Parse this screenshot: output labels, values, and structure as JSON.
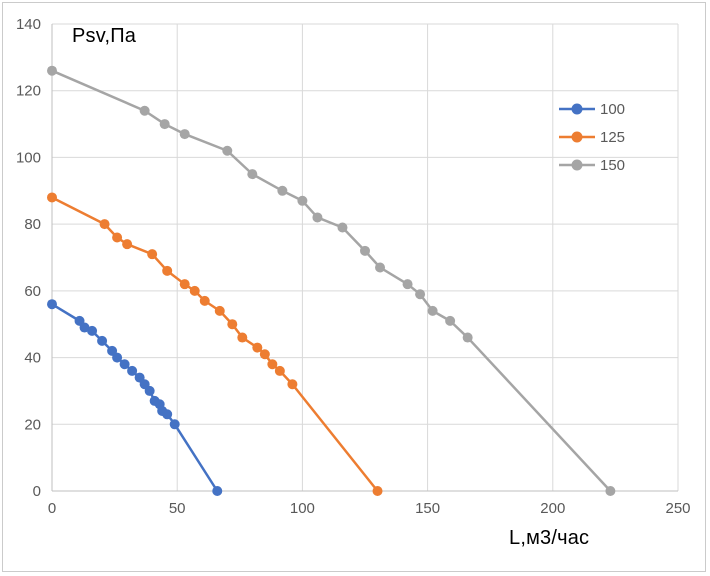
{
  "chart_data": {
    "type": "line",
    "title": "",
    "ylabel": "Psv,Па",
    "xlabel": "L,м3/час",
    "xlim": [
      0,
      250
    ],
    "ylim": [
      0,
      140
    ],
    "xticks": [
      0,
      50,
      100,
      150,
      200,
      250
    ],
    "yticks": [
      0,
      20,
      40,
      60,
      80,
      100,
      120,
      140
    ],
    "grid": true,
    "legend_position": "inside-top-right",
    "series": [
      {
        "name": "100",
        "color": "#4472C4",
        "points": [
          [
            0,
            56
          ],
          [
            11,
            51
          ],
          [
            13,
            49
          ],
          [
            16,
            48
          ],
          [
            20,
            45
          ],
          [
            24,
            42
          ],
          [
            26,
            40
          ],
          [
            29,
            38
          ],
          [
            32,
            36
          ],
          [
            35,
            34
          ],
          [
            37,
            32
          ],
          [
            39,
            30
          ],
          [
            41,
            27
          ],
          [
            43,
            26
          ],
          [
            44,
            24
          ],
          [
            46,
            23
          ],
          [
            49,
            20
          ],
          [
            66,
            0
          ]
        ]
      },
      {
        "name": "125",
        "color": "#ED7D31",
        "points": [
          [
            0,
            88
          ],
          [
            21,
            80
          ],
          [
            26,
            76
          ],
          [
            30,
            74
          ],
          [
            40,
            71
          ],
          [
            46,
            66
          ],
          [
            53,
            62
          ],
          [
            57,
            60
          ],
          [
            61,
            57
          ],
          [
            67,
            54
          ],
          [
            72,
            50
          ],
          [
            76,
            46
          ],
          [
            82,
            43
          ],
          [
            85,
            41
          ],
          [
            88,
            38
          ],
          [
            91,
            36
          ],
          [
            96,
            32
          ],
          [
            130,
            0
          ]
        ]
      },
      {
        "name": "150",
        "color": "#A5A5A5",
        "points": [
          [
            0,
            126
          ],
          [
            37,
            114
          ],
          [
            45,
            110
          ],
          [
            53,
            107
          ],
          [
            70,
            102
          ],
          [
            80,
            95
          ],
          [
            92,
            90
          ],
          [
            100,
            87
          ],
          [
            106,
            82
          ],
          [
            116,
            79
          ],
          [
            125,
            72
          ],
          [
            131,
            67
          ],
          [
            142,
            62
          ],
          [
            147,
            59
          ],
          [
            152,
            54
          ],
          [
            159,
            51
          ],
          [
            166,
            46
          ],
          [
            223,
            0
          ]
        ]
      }
    ],
    "colors": {
      "grid": "#D9D9D9",
      "axis": "#BFBFBF",
      "tick_text": "#595959",
      "title_text": "#000000",
      "legend_text": "#595959",
      "background": "#FFFFFF",
      "frame_border": "#CBCBCB"
    }
  }
}
